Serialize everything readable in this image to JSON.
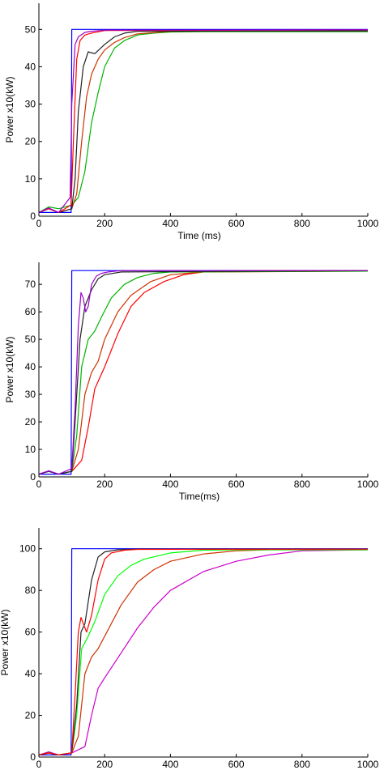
{
  "chart_data": [
    {
      "type": "line",
      "xlabel": "Time (ms)",
      "ylabel": "Power x10(kW)",
      "xlim": [
        0,
        1000
      ],
      "ylim": [
        0,
        57
      ],
      "xticks": [
        0,
        200,
        400,
        600,
        800,
        1000
      ],
      "yticks": [
        0,
        10,
        20,
        30,
        40,
        50
      ],
      "series": [
        {
          "color": "#0000ff",
          "x": [
            0,
            98,
            100,
            1000
          ],
          "y": [
            1,
            1,
            50,
            50
          ]
        },
        {
          "color": "#00b400",
          "x": [
            0,
            30,
            60,
            100,
            120,
            140,
            160,
            180,
            200,
            230,
            260,
            300,
            350,
            400,
            500,
            1000
          ],
          "y": [
            1,
            2.5,
            2,
            3,
            5,
            12,
            25,
            33,
            40,
            45,
            47,
            48.5,
            49,
            49.3,
            49.4,
            49.4
          ]
        },
        {
          "color": "#cc3300",
          "x": [
            0,
            30,
            60,
            100,
            115,
            130,
            145,
            160,
            180,
            200,
            230,
            260,
            300,
            400,
            1000
          ],
          "y": [
            1,
            2,
            1,
            2,
            6,
            20,
            32,
            38,
            42,
            44.5,
            46.5,
            47.8,
            48.8,
            49.5,
            49.6
          ]
        },
        {
          "color": "#222222",
          "x": [
            0,
            30,
            60,
            100,
            110,
            120,
            135,
            150,
            170,
            200,
            230,
            260,
            300,
            1000
          ],
          "y": [
            1,
            2,
            1,
            2,
            10,
            28,
            40,
            44,
            43.5,
            46,
            48,
            49,
            49.5,
            49.6
          ]
        },
        {
          "color": "#ff0000",
          "x": [
            0,
            30,
            60,
            98,
            105,
            115,
            125,
            140,
            160,
            200,
            1000
          ],
          "y": [
            1,
            2,
            1,
            3,
            20,
            42,
            47,
            48.5,
            49,
            49.7,
            49.9
          ]
        },
        {
          "color": "#9900cc",
          "x": [
            0,
            30,
            60,
            95,
            100,
            110,
            120,
            140,
            160,
            200,
            1000
          ],
          "y": [
            1,
            2.2,
            1,
            5,
            30,
            46,
            48,
            49.2,
            49.5,
            49.8,
            49.9
          ]
        }
      ]
    },
    {
      "type": "line",
      "xlabel": "Time(ms)",
      "ylabel": "Power x10(kW)",
      "xlim": [
        0,
        1000
      ],
      "ylim": [
        0,
        78
      ],
      "xticks": [
        0,
        200,
        400,
        600,
        800,
        1000
      ],
      "yticks": [
        0,
        10,
        20,
        30,
        40,
        50,
        60,
        70
      ],
      "series": [
        {
          "color": "#0000ff",
          "x": [
            0,
            98,
            100,
            1000
          ],
          "y": [
            1,
            1,
            75,
            75
          ]
        },
        {
          "color": "#ff0000",
          "x": [
            0,
            30,
            60,
            100,
            130,
            150,
            170,
            200,
            240,
            280,
            320,
            380,
            440,
            500,
            600,
            1000
          ],
          "y": [
            1,
            2,
            1,
            2,
            6,
            18,
            32,
            40,
            52,
            62,
            67,
            71,
            73.5,
            74.5,
            75,
            75
          ]
        },
        {
          "color": "#cc3300",
          "x": [
            0,
            30,
            60,
            100,
            120,
            140,
            160,
            180,
            200,
            240,
            280,
            340,
            400,
            500,
            1000
          ],
          "y": [
            1,
            2,
            1,
            2,
            10,
            30,
            38,
            42,
            50,
            60,
            66,
            71,
            73.5,
            74.5,
            74.8
          ]
        },
        {
          "color": "#00b400",
          "x": [
            0,
            30,
            60,
            100,
            115,
            130,
            150,
            170,
            190,
            220,
            260,
            300,
            350,
            400,
            1000
          ],
          "y": [
            1,
            2,
            1,
            2,
            15,
            40,
            50,
            53,
            58,
            65,
            70,
            72.5,
            74,
            74.5,
            74.8
          ]
        },
        {
          "color": "#222222",
          "x": [
            0,
            30,
            60,
            100,
            110,
            125,
            140,
            160,
            180,
            200,
            250,
            1000
          ],
          "y": [
            1,
            2,
            1,
            2,
            20,
            50,
            62,
            68,
            72,
            73.5,
            74.5,
            75
          ]
        },
        {
          "color": "#9900cc",
          "x": [
            0,
            30,
            60,
            100,
            110,
            120,
            128,
            135,
            142,
            150,
            160,
            175,
            190,
            210,
            250,
            1000
          ],
          "y": [
            1,
            2.2,
            1,
            3,
            25,
            55,
            67,
            65,
            60,
            62,
            70,
            73,
            74,
            74.5,
            75,
            75
          ]
        }
      ]
    },
    {
      "type": "line",
      "xlabel": "Time (ms)",
      "ylabel": "Power x10(kW)",
      "xlim": [
        0,
        1000
      ],
      "ylim": [
        0,
        110
      ],
      "xticks": [
        0,
        200,
        400,
        600,
        800,
        1000
      ],
      "yticks": [
        0,
        20,
        40,
        60,
        80,
        100
      ],
      "series": [
        {
          "color": "#0000ff",
          "x": [
            0,
            98,
            100,
            1000
          ],
          "y": [
            1,
            1,
            100,
            100
          ]
        },
        {
          "color": "#cc00cc",
          "x": [
            0,
            30,
            60,
            100,
            140,
            160,
            180,
            200,
            250,
            300,
            350,
            400,
            500,
            600,
            700,
            800,
            1000
          ],
          "y": [
            1,
            2.5,
            1,
            2,
            5,
            20,
            33,
            38,
            50,
            62,
            72,
            80,
            89,
            94,
            97,
            99,
            99.5
          ]
        },
        {
          "color": "#cc3300",
          "x": [
            0,
            30,
            60,
            100,
            120,
            140,
            160,
            180,
            200,
            250,
            300,
            350,
            400,
            500,
            600,
            700,
            1000
          ],
          "y": [
            1,
            2,
            1,
            2,
            10,
            40,
            48,
            52,
            58,
            73,
            84,
            90,
            94,
            97.5,
            99,
            99.5,
            99.5
          ]
        },
        {
          "color": "#00ff00",
          "x": [
            0,
            30,
            60,
            100,
            115,
            130,
            150,
            170,
            200,
            240,
            280,
            320,
            400,
            500,
            600,
            1000
          ],
          "y": [
            1,
            2,
            1,
            2,
            20,
            52,
            58,
            65,
            78,
            87,
            92,
            95,
            98,
            99.3,
            99.5,
            99.5
          ]
        },
        {
          "color": "#222222",
          "x": [
            0,
            30,
            60,
            100,
            115,
            128,
            140,
            160,
            180,
            200,
            240,
            300,
            1000
          ],
          "y": [
            1,
            2,
            1,
            2,
            25,
            60,
            64,
            85,
            96,
            98.5,
            99.5,
            99.8,
            99.8
          ]
        },
        {
          "color": "#ff0000",
          "x": [
            0,
            30,
            60,
            100,
            110,
            120,
            128,
            135,
            145,
            160,
            180,
            200,
            220,
            260,
            300,
            1000
          ],
          "y": [
            1,
            2,
            1,
            2,
            30,
            60,
            67,
            64,
            60,
            68,
            85,
            95,
            98,
            99.3,
            99.7,
            99.8
          ]
        }
      ]
    }
  ]
}
